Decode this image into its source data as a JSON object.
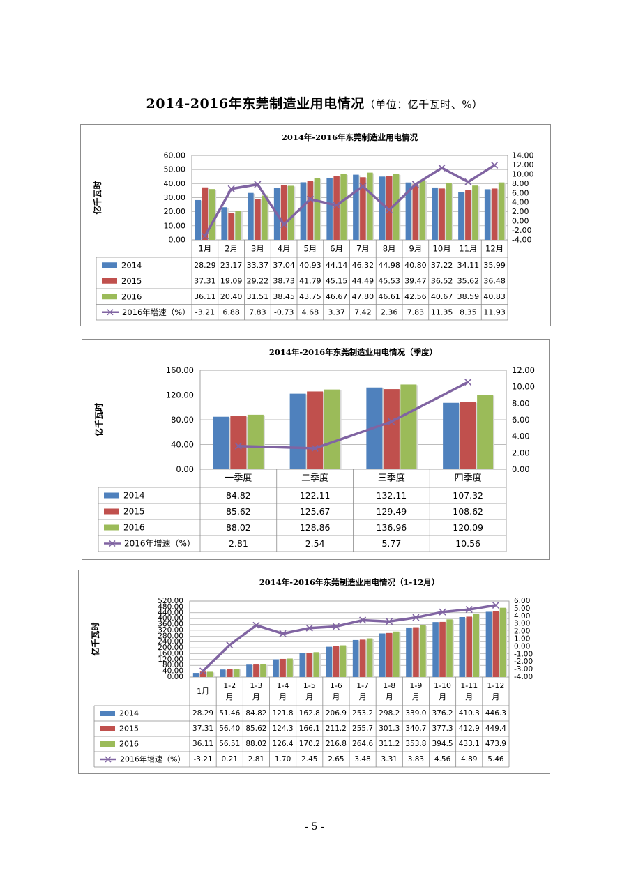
{
  "page": {
    "title": "2014-2016年东莞制造业用电情况",
    "unit_note": "（单位：亿千瓦时、%）",
    "page_number": "- 5 -"
  },
  "colors": {
    "s2014": "#4F81BD",
    "s2015": "#C0504D",
    "s2016": "#9BBB59",
    "growth": "#8064A2"
  },
  "chart_data": [
    {
      "type": "bar",
      "title": "2014年-2016年东莞制造业用电情况",
      "ylabel": "亿千瓦时",
      "ylim": [
        0,
        60
      ],
      "yticks": [
        "0.00",
        "10.00",
        "20.00",
        "30.00",
        "40.00",
        "50.00",
        "60.00"
      ],
      "y2lim": [
        -4,
        14
      ],
      "y2ticks": [
        "-4.00",
        "-2.00",
        "0.00",
        "2.00",
        "4.00",
        "6.00",
        "8.00",
        "10.00",
        "12.00",
        "14.00"
      ],
      "categories": [
        "1月",
        "2月",
        "3月",
        "4月",
        "5月",
        "6月",
        "7月",
        "8月",
        "9月",
        "10月",
        "11月",
        "12月"
      ],
      "series": [
        {
          "name": "2014",
          "type": "bar",
          "values": [
            28.29,
            23.17,
            33.37,
            37.04,
            40.93,
            44.14,
            46.32,
            44.98,
            40.8,
            37.22,
            34.11,
            35.99
          ],
          "labels": [
            "28.29",
            "23.17",
            "33.37",
            "37.04",
            "40.93",
            "44.14",
            "46.32",
            "44.98",
            "40.80",
            "37.22",
            "34.11",
            "35.99"
          ]
        },
        {
          "name": "2015",
          "type": "bar",
          "values": [
            37.31,
            19.09,
            29.22,
            38.73,
            41.79,
            45.15,
            44.49,
            45.53,
            39.47,
            36.52,
            35.62,
            36.48
          ],
          "labels": [
            "37.31",
            "19.09",
            "29.22",
            "38.73",
            "41.79",
            "45.15",
            "44.49",
            "45.53",
            "39.47",
            "36.52",
            "35.62",
            "36.48"
          ]
        },
        {
          "name": "2016",
          "type": "bar",
          "values": [
            36.11,
            20.4,
            31.51,
            38.45,
            43.75,
            46.67,
            47.8,
            46.61,
            42.56,
            40.67,
            38.59,
            40.83
          ],
          "labels": [
            "36.11",
            "20.40",
            "31.51",
            "38.45",
            "43.75",
            "46.67",
            "47.80",
            "46.61",
            "42.56",
            "40.67",
            "38.59",
            "40.83"
          ]
        },
        {
          "name": "2016年增速（%）",
          "type": "line",
          "axis": "secondary",
          "values": [
            -3.21,
            6.88,
            7.83,
            -0.73,
            4.68,
            3.37,
            7.42,
            2.36,
            7.83,
            11.35,
            8.35,
            11.93
          ],
          "labels": [
            "-3.21",
            "6.88",
            "7.83",
            "-0.73",
            "4.68",
            "3.37",
            "7.42",
            "2.36",
            "7.83",
            "11.35",
            "8.35",
            "11.93"
          ]
        }
      ]
    },
    {
      "type": "bar",
      "title": "2014年-2016年东莞制造业用电情况（季度）",
      "ylabel": "亿千瓦时",
      "ylim": [
        0,
        160
      ],
      "yticks": [
        "0.00",
        "40.00",
        "80.00",
        "120.00",
        "160.00"
      ],
      "y2lim": [
        0,
        12
      ],
      "y2ticks": [
        "0.00",
        "2.00",
        "4.00",
        "6.00",
        "8.00",
        "10.00",
        "12.00"
      ],
      "categories": [
        "一季度",
        "二季度",
        "三季度",
        "四季度"
      ],
      "series": [
        {
          "name": "2014",
          "type": "bar",
          "values": [
            84.82,
            122.11,
            132.11,
            107.32
          ],
          "labels": [
            "84.82",
            "122.11",
            "132.11",
            "107.32"
          ]
        },
        {
          "name": "2015",
          "type": "bar",
          "values": [
            85.62,
            125.67,
            129.49,
            108.62
          ],
          "labels": [
            "85.62",
            "125.67",
            "129.49",
            "108.62"
          ]
        },
        {
          "name": "2016",
          "type": "bar",
          "values": [
            88.02,
            128.86,
            136.96,
            120.09
          ],
          "labels": [
            "88.02",
            "128.86",
            "136.96",
            "120.09"
          ]
        },
        {
          "name": "2016年增速（%）",
          "type": "line",
          "axis": "secondary",
          "values": [
            2.81,
            2.54,
            5.77,
            10.56
          ],
          "labels": [
            "2.81",
            "2.54",
            "5.77",
            "10.56"
          ]
        }
      ]
    },
    {
      "type": "bar",
      "title": "2014年-2016年东莞制造业用电情况（1-12月）",
      "ylabel": "亿千瓦时",
      "ylim": [
        0,
        520
      ],
      "yticks": [
        "0.00",
        "40.00",
        "80.00",
        "120.00",
        "160.00",
        "200.00",
        "240.00",
        "280.00",
        "320.00",
        "360.00",
        "400.00",
        "440.00",
        "480.00",
        "520.00"
      ],
      "y2lim": [
        -4,
        6
      ],
      "y2ticks": [
        "-4.00",
        "-3.00",
        "-2.00",
        "-1.00",
        "0.00",
        "1.00",
        "2.00",
        "3.00",
        "4.00",
        "5.00",
        "6.00"
      ],
      "categories": [
        "1月",
        "1-2月",
        "1-3月",
        "1-4月",
        "1-5月",
        "1-6月",
        "1-7月",
        "1-8月",
        "1-9月",
        "1-10月",
        "1-11月",
        "1-12月"
      ],
      "category_lines": [
        [
          "1月"
        ],
        [
          "1-2",
          "月"
        ],
        [
          "1-3",
          "月"
        ],
        [
          "1-4",
          "月"
        ],
        [
          "1-5",
          "月"
        ],
        [
          "1-6",
          "月"
        ],
        [
          "1-7",
          "月"
        ],
        [
          "1-8",
          "月"
        ],
        [
          "1-9",
          "月"
        ],
        [
          "1-10",
          "月"
        ],
        [
          "1-11",
          "月"
        ],
        [
          "1-12",
          "月"
        ]
      ],
      "series": [
        {
          "name": "2014",
          "type": "bar",
          "values": [
            28.29,
            51.46,
            84.82,
            121.8,
            162.8,
            206.9,
            253.2,
            298.2,
            339.0,
            376.2,
            410.3,
            446.3
          ],
          "labels": [
            "28.29",
            "51.46",
            "84.82",
            "121.8",
            "162.8",
            "206.9",
            "253.2",
            "298.2",
            "339.0",
            "376.2",
            "410.3",
            "446.3"
          ]
        },
        {
          "name": "2015",
          "type": "bar",
          "values": [
            37.31,
            56.4,
            85.62,
            124.3,
            166.1,
            211.2,
            255.7,
            301.3,
            340.7,
            377.3,
            412.9,
            449.4
          ],
          "labels": [
            "37.31",
            "56.40",
            "85.62",
            "124.3",
            "166.1",
            "211.2",
            "255.7",
            "301.3",
            "340.7",
            "377.3",
            "412.9",
            "449.4"
          ]
        },
        {
          "name": "2016",
          "type": "bar",
          "values": [
            36.11,
            56.51,
            88.02,
            126.4,
            170.2,
            216.8,
            264.6,
            311.2,
            353.8,
            394.5,
            433.1,
            473.9
          ],
          "labels": [
            "36.11",
            "56.51",
            "88.02",
            "126.4",
            "170.2",
            "216.8",
            "264.6",
            "311.2",
            "353.8",
            "394.5",
            "433.1",
            "473.9"
          ]
        },
        {
          "name": "2016年增速（%）",
          "type": "line",
          "axis": "secondary",
          "values": [
            -3.21,
            0.21,
            2.81,
            1.7,
            2.45,
            2.65,
            3.48,
            3.31,
            3.83,
            4.56,
            4.89,
            5.46
          ],
          "labels": [
            "-3.21",
            "0.21",
            "2.81",
            "1.70",
            "2.45",
            "2.65",
            "3.48",
            "3.31",
            "3.83",
            "4.56",
            "4.89",
            "5.46"
          ]
        }
      ]
    }
  ]
}
